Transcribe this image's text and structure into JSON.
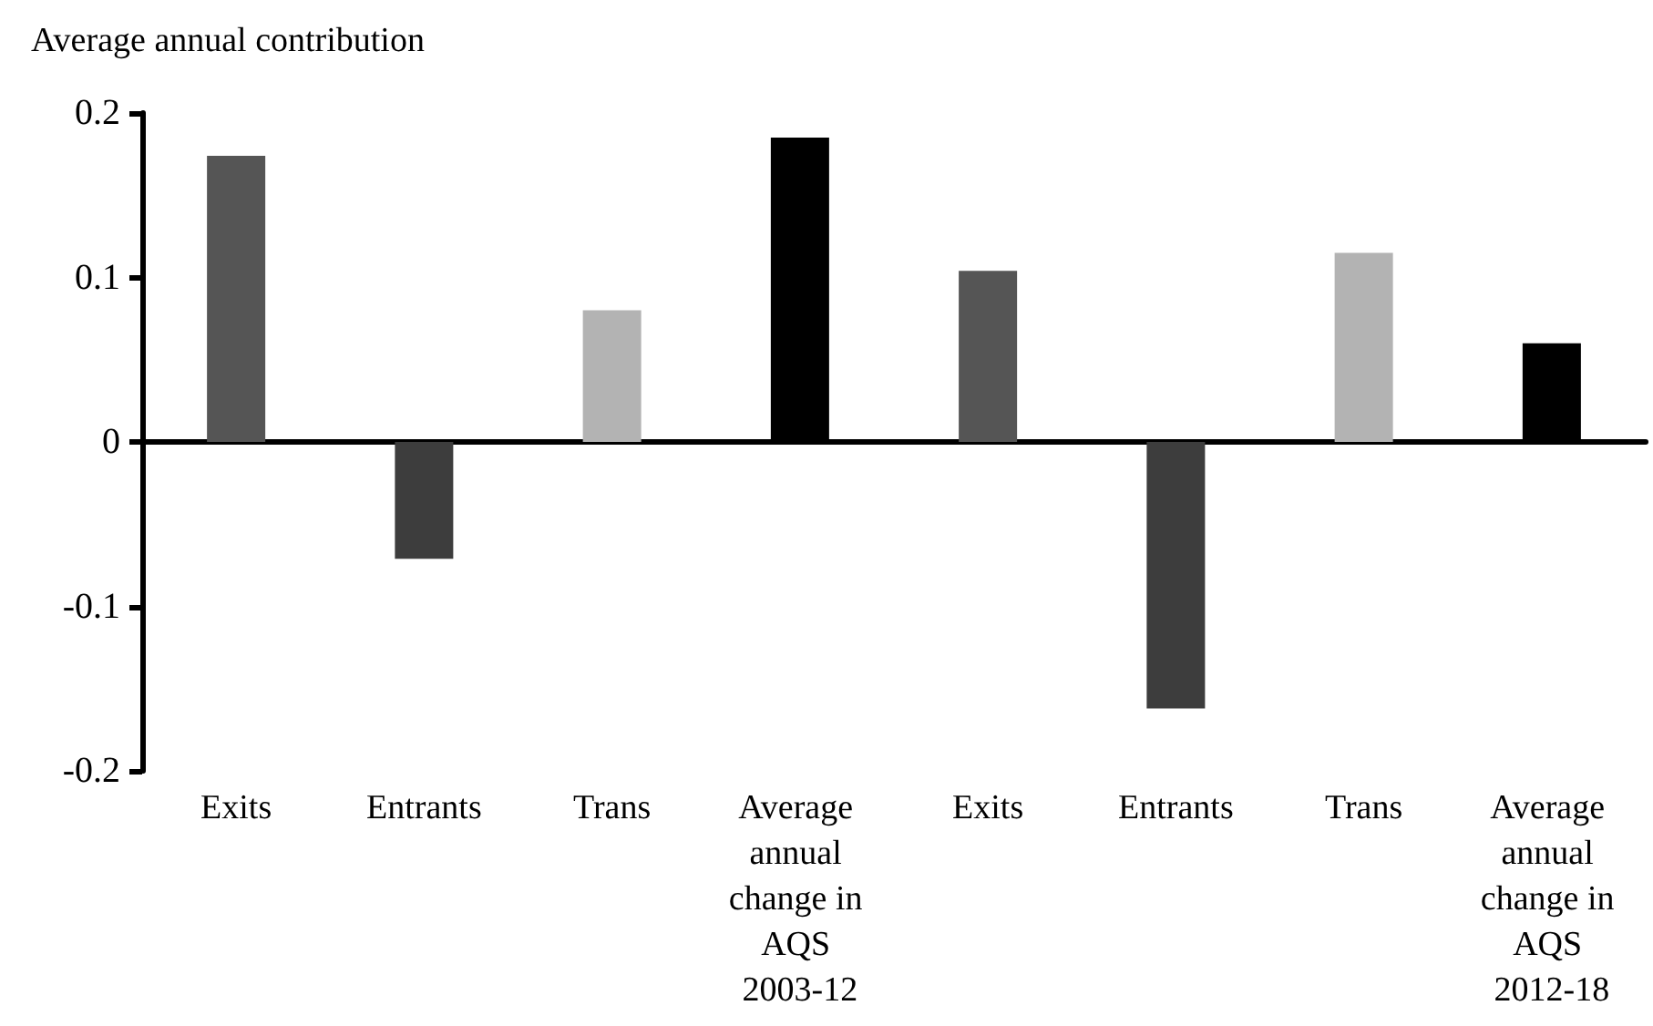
{
  "chart_data": {
    "type": "bar",
    "ylabel": "Average annual contribution",
    "categories": [
      "Exits",
      "Entrants",
      "Trans",
      "Average annual change in AQS 2003-12",
      "Exits",
      "Entrants",
      "Trans",
      "Average annual change in AQS 2012-18"
    ],
    "values": [
      0.174,
      -0.071,
      0.08,
      0.185,
      0.104,
      -0.162,
      0.115,
      0.06
    ],
    "colors": [
      "#555555",
      "#3d3d3d",
      "#b3b3b3",
      "#000000",
      "#555555",
      "#3d3d3d",
      "#b3b3b3",
      "#000000"
    ],
    "ylim": [
      -0.2,
      0.2
    ],
    "yticks": [
      -0.2,
      -0.1,
      0,
      0.1,
      0.2
    ]
  }
}
